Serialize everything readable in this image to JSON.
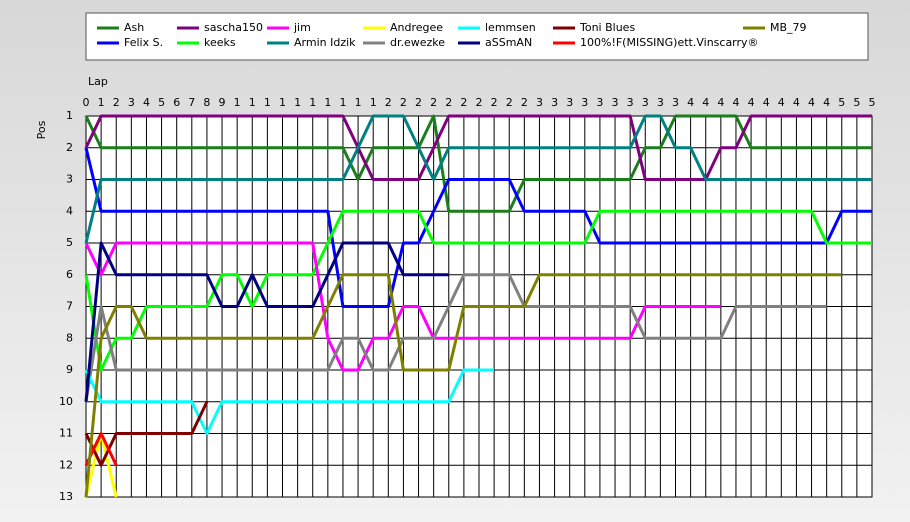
{
  "chart_data": {
    "type": "line",
    "x_label": "Lap",
    "y_label": "Pos",
    "xlim": [
      0,
      52
    ],
    "ylim": [
      13,
      1
    ],
    "grid": true,
    "xticks": [
      0,
      1,
      2,
      3,
      4,
      5,
      6,
      7,
      8,
      9,
      {
        "value": 10,
        "label": "1"
      },
      {
        "value": 11,
        "label": "1"
      },
      {
        "value": 12,
        "label": "1"
      },
      {
        "value": 13,
        "label": "1"
      },
      {
        "value": 14,
        "label": "1"
      },
      {
        "value": 15,
        "label": "1"
      },
      {
        "value": 16,
        "label": "1"
      },
      {
        "value": 17,
        "label": "1"
      },
      {
        "value": 18,
        "label": "1"
      },
      {
        "value": 19,
        "label": "1"
      },
      {
        "value": 20,
        "label": "2"
      },
      {
        "value": 21,
        "label": "2"
      },
      {
        "value": 22,
        "label": "2"
      },
      {
        "value": 23,
        "label": "2"
      },
      {
        "value": 24,
        "label": "2"
      },
      {
        "value": 25,
        "label": "2"
      },
      {
        "value": 26,
        "label": "2"
      },
      {
        "value": 27,
        "label": "2"
      },
      {
        "value": 28,
        "label": "2"
      },
      {
        "value": 29,
        "label": "2"
      },
      {
        "value": 30,
        "label": "3"
      },
      {
        "value": 31,
        "label": "3"
      },
      {
        "value": 32,
        "label": "3"
      },
      {
        "value": 33,
        "label": "3"
      },
      {
        "value": 34,
        "label": "3"
      },
      {
        "value": 35,
        "label": "3"
      },
      {
        "value": 36,
        "label": "3"
      },
      {
        "value": 37,
        "label": "3"
      },
      {
        "value": 38,
        "label": "3"
      },
      {
        "value": 39,
        "label": "3"
      },
      {
        "value": 40,
        "label": "4"
      },
      {
        "value": 41,
        "label": "4"
      },
      {
        "value": 42,
        "label": "4"
      },
      {
        "value": 43,
        "label": "4"
      },
      {
        "value": 44,
        "label": "4"
      },
      {
        "value": 45,
        "label": "4"
      },
      {
        "value": 46,
        "label": "4"
      },
      {
        "value": 47,
        "label": "4"
      },
      {
        "value": 48,
        "label": "4"
      },
      {
        "value": 49,
        "label": "4"
      },
      {
        "value": 50,
        "label": "5"
      },
      {
        "value": 51,
        "label": "5"
      },
      {
        "value": 52,
        "label": "5"
      }
    ],
    "yticks": [
      1,
      2,
      3,
      4,
      5,
      6,
      7,
      8,
      9,
      10,
      11,
      12,
      13
    ],
    "series": [
      {
        "name": "Ash",
        "color": "#1a7f1a",
        "values": [
          1,
          2,
          2,
          2,
          2,
          2,
          2,
          2,
          2,
          2,
          2,
          2,
          2,
          2,
          2,
          2,
          2,
          2,
          3,
          2,
          2,
          2,
          2,
          1,
          4,
          4,
          4,
          4,
          4,
          3,
          3,
          3,
          3,
          3,
          3,
          3,
          3,
          2,
          2,
          1,
          1,
          1,
          1,
          1,
          2,
          2,
          2,
          2,
          2,
          2,
          2,
          2,
          2
        ]
      },
      {
        "name": "Felix S.",
        "color": "#0000ff",
        "values": [
          2,
          4,
          4,
          4,
          4,
          4,
          4,
          4,
          4,
          4,
          4,
          4,
          4,
          4,
          4,
          4,
          4,
          7,
          7,
          7,
          7,
          5,
          5,
          4,
          3,
          3,
          3,
          3,
          3,
          4,
          4,
          4,
          4,
          4,
          5,
          5,
          5,
          5,
          5,
          5,
          5,
          5,
          5,
          5,
          5,
          5,
          5,
          5,
          5,
          5,
          4,
          4,
          4
        ]
      },
      {
        "name": "sascha150",
        "color": "#800080",
        "values": [
          2,
          1,
          1,
          1,
          1,
          1,
          1,
          1,
          1,
          1,
          1,
          1,
          1,
          1,
          1,
          1,
          1,
          1,
          2,
          3,
          3,
          3,
          3,
          2,
          1,
          1,
          1,
          1,
          1,
          1,
          1,
          1,
          1,
          1,
          1,
          1,
          1,
          3,
          3,
          3,
          3,
          3,
          2,
          2,
          1,
          1,
          1,
          1,
          1,
          1,
          1,
          1,
          1
        ]
      },
      {
        "name": "keeks",
        "color": "#00ff00",
        "values": [
          6,
          9,
          8,
          8,
          7,
          7,
          7,
          7,
          7,
          6,
          6,
          7,
          6,
          6,
          6,
          6,
          5,
          4,
          4,
          4,
          4,
          4,
          4,
          5,
          5,
          5,
          5,
          5,
          5,
          5,
          5,
          5,
          5,
          5,
          4,
          4,
          4,
          4,
          4,
          4,
          4,
          4,
          4,
          4,
          4,
          4,
          4,
          4,
          4,
          5,
          5,
          5,
          5
        ]
      },
      {
        "name": "jim",
        "color": "#ff00ff",
        "values": [
          5,
          6,
          5,
          5,
          5,
          5,
          5,
          5,
          5,
          5,
          5,
          5,
          5,
          5,
          5,
          5,
          8,
          9,
          9,
          8,
          8,
          7,
          7,
          8,
          8,
          8,
          8,
          8,
          8,
          8,
          8,
          8,
          8,
          8,
          8,
          8,
          8,
          7,
          7,
          7,
          7,
          7,
          7,
          null,
          null,
          null,
          null,
          null,
          null,
          null,
          null,
          null,
          null
        ]
      },
      {
        "name": "Armin Idzik",
        "color": "#008080",
        "values": [
          5,
          3,
          3,
          3,
          3,
          3,
          3,
          3,
          3,
          3,
          3,
          3,
          3,
          3,
          3,
          3,
          3,
          3,
          2,
          1,
          1,
          1,
          2,
          3,
          2,
          2,
          2,
          2,
          2,
          2,
          2,
          2,
          2,
          2,
          2,
          2,
          2,
          1,
          1,
          2,
          2,
          3,
          3,
          3,
          3,
          3,
          3,
          3,
          3,
          3,
          3,
          3,
          3
        ]
      },
      {
        "name": "Andregee",
        "color": "#ffff00",
        "values": [
          13,
          11,
          13,
          null,
          null,
          null,
          null,
          null,
          null,
          null,
          null,
          null,
          null,
          null,
          null,
          null,
          null,
          null,
          null,
          null,
          null,
          null,
          null,
          null,
          null,
          null,
          null,
          null,
          null,
          null,
          null,
          null,
          null,
          null,
          null,
          null,
          null,
          null,
          null,
          null,
          null,
          null,
          null,
          null,
          null,
          null,
          null,
          null,
          null,
          null,
          null,
          null,
          null
        ]
      },
      {
        "name": "dr.ewezke",
        "color": "#808080",
        "values": [
          10,
          7,
          9,
          9,
          9,
          9,
          9,
          9,
          9,
          9,
          9,
          9,
          9,
          9,
          9,
          9,
          9,
          8,
          8,
          9,
          9,
          8,
          8,
          8,
          7,
          6,
          6,
          6,
          6,
          7,
          7,
          7,
          7,
          7,
          7,
          7,
          7,
          8,
          8,
          8,
          8,
          8,
          8,
          7,
          7,
          7,
          7,
          7,
          7,
          7,
          null,
          null,
          null
        ]
      },
      {
        "name": "lemmsen",
        "color": "#00ffff",
        "values": [
          9,
          10,
          10,
          10,
          10,
          10,
          10,
          10,
          11,
          10,
          10,
          10,
          10,
          10,
          10,
          10,
          10,
          10,
          10,
          10,
          10,
          10,
          10,
          10,
          10,
          9,
          9,
          9,
          null,
          null,
          null,
          null,
          null,
          null,
          null,
          null,
          null,
          null,
          null,
          null,
          null,
          null,
          null,
          null,
          null,
          null,
          null,
          null,
          null,
          null,
          null,
          null,
          null
        ]
      },
      {
        "name": "aSSmAN",
        "color": "#000080",
        "values": [
          10,
          5,
          6,
          6,
          6,
          6,
          6,
          6,
          6,
          7,
          7,
          6,
          7,
          7,
          7,
          7,
          6,
          5,
          5,
          5,
          5,
          6,
          6,
          6,
          6,
          null,
          null,
          null,
          null,
          null,
          null,
          null,
          null,
          null,
          null,
          null,
          null,
          null,
          null,
          null,
          null,
          null,
          null,
          null,
          null,
          null,
          null,
          null,
          null,
          null,
          null,
          null,
          null
        ]
      },
      {
        "name": "Toni Blues",
        "color": "#800000",
        "values": [
          11,
          12,
          11,
          11,
          11,
          11,
          11,
          11,
          10,
          null,
          null,
          null,
          null,
          null,
          null,
          null,
          null,
          null,
          null,
          null,
          null,
          null,
          null,
          null,
          null,
          null,
          null,
          null,
          null,
          null,
          null,
          null,
          null,
          null,
          null,
          null,
          null,
          null,
          null,
          null,
          null,
          null,
          null,
          null,
          null,
          null,
          null,
          null,
          null,
          null,
          null,
          null,
          null
        ]
      },
      {
        "name": "100%!F(MISSING)ett.Vinscarry®",
        "color": "#ff0000",
        "values": [
          12,
          11,
          12,
          null,
          null,
          null,
          null,
          null,
          null,
          null,
          null,
          null,
          null,
          null,
          null,
          null,
          null,
          null,
          null,
          null,
          null,
          null,
          null,
          null,
          null,
          null,
          null,
          null,
          null,
          null,
          null,
          null,
          null,
          null,
          null,
          null,
          null,
          null,
          null,
          null,
          null,
          null,
          null,
          null,
          null,
          null,
          null,
          null,
          null,
          null,
          null,
          null,
          null
        ]
      },
      {
        "name": "MB_79",
        "color": "#808000",
        "values": [
          13,
          8,
          7,
          7,
          8,
          8,
          8,
          8,
          8,
          8,
          8,
          8,
          8,
          8,
          8,
          8,
          7,
          6,
          6,
          6,
          6,
          9,
          9,
          9,
          9,
          7,
          7,
          7,
          7,
          7,
          6,
          6,
          6,
          6,
          6,
          6,
          6,
          6,
          6,
          6,
          6,
          6,
          6,
          6,
          6,
          6,
          6,
          6,
          6,
          6,
          6,
          null,
          null
        ]
      }
    ]
  }
}
